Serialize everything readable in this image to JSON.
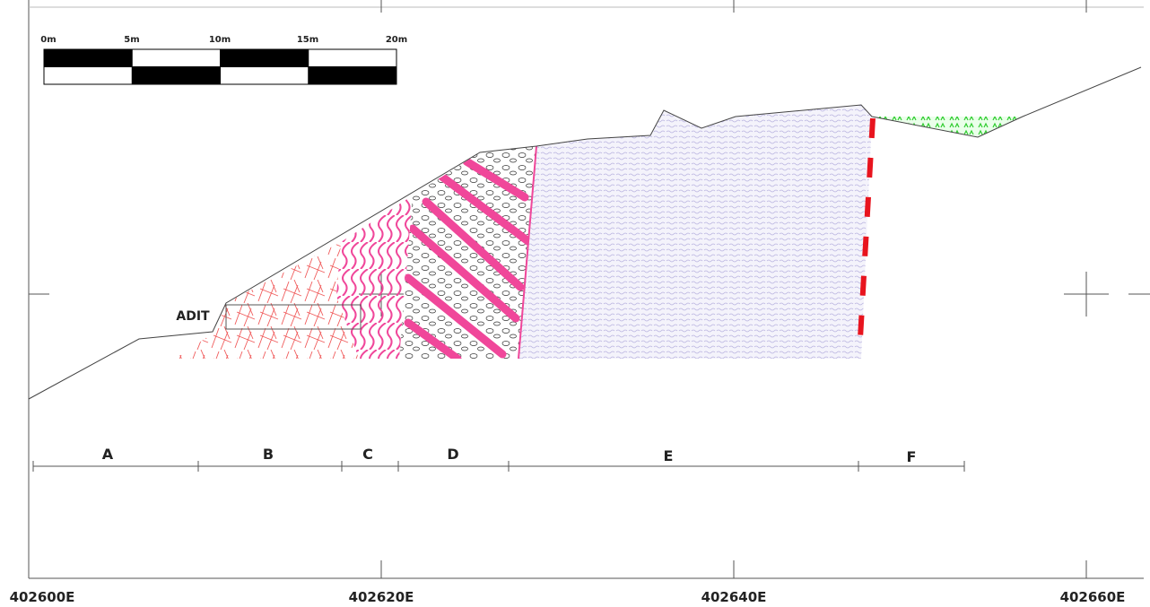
{
  "scale_bar": {
    "labels": [
      "0m",
      "5m",
      "10m",
      "15m",
      "20m"
    ]
  },
  "adit_label": "ADIT",
  "zones": [
    "A",
    "B",
    "C",
    "D",
    "E",
    "F"
  ],
  "eastings": [
    "402600E",
    "402620E",
    "402640E",
    "402660E"
  ]
}
